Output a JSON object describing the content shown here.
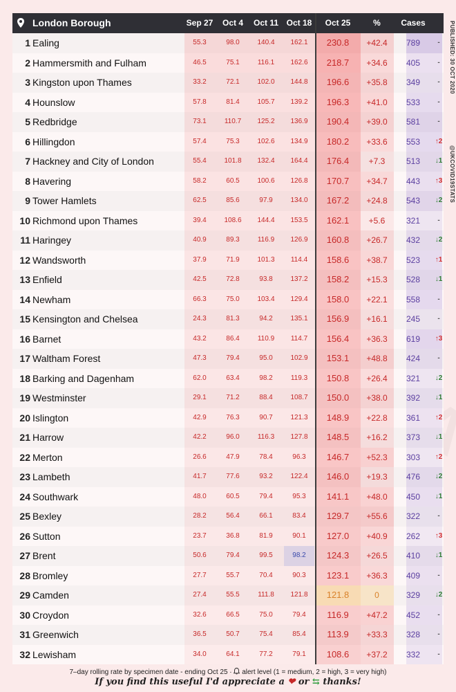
{
  "chart_data": {
    "type": "table",
    "title": "London Borough",
    "columns": [
      "London Borough",
      "Sep 27",
      "Oct 4",
      "Oct 11",
      "Oct 18",
      "Oct 25",
      "%",
      "Cases"
    ],
    "published": "PUBLISHED: 30 OCT 2020",
    "handle": "@UKCOVID19STATS",
    "watermark": "@UKCOVID19STATS",
    "rows": [
      {
        "rank": "1",
        "name": "Ealing",
        "sep27": "55.3",
        "oct4": "98.0",
        "oct11": "140.4",
        "oct18": "162.1",
        "oct25": "230.8",
        "pct": "+42.4",
        "cases": "789",
        "alert": "-"
      },
      {
        "rank": "2",
        "name": "Hammersmith and Fulham",
        "sep27": "46.5",
        "oct4": "75.1",
        "oct11": "116.1",
        "oct18": "162.6",
        "oct25": "218.7",
        "pct": "+34.6",
        "cases": "405",
        "alert": "-"
      },
      {
        "rank": "3",
        "name": "Kingston upon Thames",
        "sep27": "33.2",
        "oct4": "72.1",
        "oct11": "102.0",
        "oct18": "144.8",
        "oct25": "196.6",
        "pct": "+35.8",
        "cases": "349",
        "alert": "-"
      },
      {
        "rank": "4",
        "name": "Hounslow",
        "sep27": "57.8",
        "oct4": "81.4",
        "oct11": "105.7",
        "oct18": "139.2",
        "oct25": "196.3",
        "pct": "+41.0",
        "cases": "533",
        "alert": "-"
      },
      {
        "rank": "5",
        "name": "Redbridge",
        "sep27": "73.1",
        "oct4": "110.7",
        "oct11": "125.2",
        "oct18": "136.9",
        "oct25": "190.4",
        "pct": "+39.0",
        "cases": "581",
        "alert": "-"
      },
      {
        "rank": "6",
        "name": "Hillingdon",
        "sep27": "57.4",
        "oct4": "75.3",
        "oct11": "102.6",
        "oct18": "134.9",
        "oct25": "180.2",
        "pct": "+33.6",
        "cases": "553",
        "alert": "↑2"
      },
      {
        "rank": "7",
        "name": "Hackney and City of London",
        "sep27": "55.4",
        "oct4": "101.8",
        "oct11": "132.4",
        "oct18": "164.4",
        "oct25": "176.4",
        "pct": "+7.3",
        "cases": "513",
        "alert": "↓1"
      },
      {
        "rank": "8",
        "name": "Havering",
        "sep27": "58.2",
        "oct4": "60.5",
        "oct11": "100.6",
        "oct18": "126.8",
        "oct25": "170.7",
        "pct": "+34.7",
        "cases": "443",
        "alert": "↑3"
      },
      {
        "rank": "9",
        "name": "Tower Hamlets",
        "sep27": "62.5",
        "oct4": "85.6",
        "oct11": "97.9",
        "oct18": "134.0",
        "oct25": "167.2",
        "pct": "+24.8",
        "cases": "543",
        "alert": "↓2"
      },
      {
        "rank": "10",
        "name": "Richmond upon Thames",
        "sep27": "39.4",
        "oct4": "108.6",
        "oct11": "144.4",
        "oct18": "153.5",
        "oct25": "162.1",
        "pct": "+5.6",
        "cases": "321",
        "alert": "-"
      },
      {
        "rank": "11",
        "name": "Haringey",
        "sep27": "40.9",
        "oct4": "89.3",
        "oct11": "116.9",
        "oct18": "126.9",
        "oct25": "160.8",
        "pct": "+26.7",
        "cases": "432",
        "alert": "↓2"
      },
      {
        "rank": "12",
        "name": "Wandsworth",
        "sep27": "37.9",
        "oct4": "71.9",
        "oct11": "101.3",
        "oct18": "114.4",
        "oct25": "158.6",
        "pct": "+38.7",
        "cases": "523",
        "alert": "↑1"
      },
      {
        "rank": "13",
        "name": "Enfield",
        "sep27": "42.5",
        "oct4": "72.8",
        "oct11": "93.8",
        "oct18": "137.2",
        "oct25": "158.2",
        "pct": "+15.3",
        "cases": "528",
        "alert": "↓1"
      },
      {
        "rank": "14",
        "name": "Newham",
        "sep27": "66.3",
        "oct4": "75.0",
        "oct11": "103.4",
        "oct18": "129.4",
        "oct25": "158.0",
        "pct": "+22.1",
        "cases": "558",
        "alert": "-"
      },
      {
        "rank": "15",
        "name": "Kensington and Chelsea",
        "sep27": "24.3",
        "oct4": "81.3",
        "oct11": "94.2",
        "oct18": "135.1",
        "oct25": "156.9",
        "pct": "+16.1",
        "cases": "245",
        "alert": "-"
      },
      {
        "rank": "16",
        "name": "Barnet",
        "sep27": "43.2",
        "oct4": "86.4",
        "oct11": "110.9",
        "oct18": "114.7",
        "oct25": "156.4",
        "pct": "+36.3",
        "cases": "619",
        "alert": "↑3"
      },
      {
        "rank": "17",
        "name": "Waltham Forest",
        "sep27": "47.3",
        "oct4": "79.4",
        "oct11": "95.0",
        "oct18": "102.9",
        "oct25": "153.1",
        "pct": "+48.8",
        "cases": "424",
        "alert": "-"
      },
      {
        "rank": "18",
        "name": "Barking and Dagenham",
        "sep27": "62.0",
        "oct4": "63.4",
        "oct11": "98.2",
        "oct18": "119.3",
        "oct25": "150.8",
        "pct": "+26.4",
        "cases": "321",
        "alert": "↓2"
      },
      {
        "rank": "19",
        "name": "Westminster",
        "sep27": "29.1",
        "oct4": "71.2",
        "oct11": "88.4",
        "oct18": "108.7",
        "oct25": "150.0",
        "pct": "+38.0",
        "cases": "392",
        "alert": "↓1"
      },
      {
        "rank": "20",
        "name": "Islington",
        "sep27": "42.9",
        "oct4": "76.3",
        "oct11": "90.7",
        "oct18": "121.3",
        "oct25": "148.9",
        "pct": "+22.8",
        "cases": "361",
        "alert": "↑2"
      },
      {
        "rank": "21",
        "name": "Harrow",
        "sep27": "42.2",
        "oct4": "96.0",
        "oct11": "116.3",
        "oct18": "127.8",
        "oct25": "148.5",
        "pct": "+16.2",
        "cases": "373",
        "alert": "↓1"
      },
      {
        "rank": "22",
        "name": "Merton",
        "sep27": "26.6",
        "oct4": "47.9",
        "oct11": "78.4",
        "oct18": "96.3",
        "oct25": "146.7",
        "pct": "+52.3",
        "cases": "303",
        "alert": "↑2"
      },
      {
        "rank": "23",
        "name": "Lambeth",
        "sep27": "41.7",
        "oct4": "77.6",
        "oct11": "93.2",
        "oct18": "122.4",
        "oct25": "146.0",
        "pct": "+19.3",
        "cases": "476",
        "alert": "↓2"
      },
      {
        "rank": "24",
        "name": "Southwark",
        "sep27": "48.0",
        "oct4": "60.5",
        "oct11": "79.4",
        "oct18": "95.3",
        "oct25": "141.1",
        "pct": "+48.0",
        "cases": "450",
        "alert": "↓1"
      },
      {
        "rank": "25",
        "name": "Bexley",
        "sep27": "28.2",
        "oct4": "56.4",
        "oct11": "66.1",
        "oct18": "83.4",
        "oct25": "129.7",
        "pct": "+55.6",
        "cases": "322",
        "alert": "-"
      },
      {
        "rank": "26",
        "name": "Sutton",
        "sep27": "23.7",
        "oct4": "36.8",
        "oct11": "81.9",
        "oct18": "90.1",
        "oct25": "127.0",
        "pct": "+40.9",
        "cases": "262",
        "alert": "↑3"
      },
      {
        "rank": "27",
        "name": "Brent",
        "sep27": "50.6",
        "oct4": "79.4",
        "oct11": "99.5",
        "oct18": "98.2",
        "oct25": "124.3",
        "pct": "+26.5",
        "cases": "410",
        "alert": "↓1"
      },
      {
        "rank": "28",
        "name": "Bromley",
        "sep27": "27.7",
        "oct4": "55.7",
        "oct11": "70.4",
        "oct18": "90.3",
        "oct25": "123.1",
        "pct": "+36.3",
        "cases": "409",
        "alert": "-"
      },
      {
        "rank": "29",
        "name": "Camden",
        "sep27": "27.4",
        "oct4": "55.5",
        "oct11": "111.8",
        "oct18": "121.8",
        "oct25": "121.8",
        "pct": "0",
        "cases": "329",
        "alert": "↓2"
      },
      {
        "rank": "30",
        "name": "Croydon",
        "sep27": "32.6",
        "oct4": "66.5",
        "oct11": "75.0",
        "oct18": "79.4",
        "oct25": "116.9",
        "pct": "+47.2",
        "cases": "452",
        "alert": "-"
      },
      {
        "rank": "31",
        "name": "Greenwich",
        "sep27": "36.5",
        "oct4": "50.7",
        "oct11": "75.4",
        "oct18": "85.4",
        "oct25": "113.9",
        "pct": "+33.3",
        "cases": "328",
        "alert": "-"
      },
      {
        "rank": "32",
        "name": "Lewisham",
        "sep27": "34.0",
        "oct4": "64.1",
        "oct11": "77.2",
        "oct18": "79.1",
        "oct25": "108.6",
        "pct": "+37.2",
        "cases": "332",
        "alert": "-"
      }
    ],
    "footnote_before_icon": "7–day rolling rate by specimen date - ending Oct 25 · ",
    "footnote_icon": "bell-icon",
    "footnote_after_icon": " alert level (1 = medium, 2 = high, 3 = very high)",
    "thanks_before": "If you find this useful I'd appreciate a ",
    "thanks_middle": " or ",
    "thanks_after": " thanks!",
    "colors": {
      "header_bg": "#2f2f35",
      "page_bg": "#fbeaea",
      "value_red": "#c62828",
      "cases_purple": "#5b3fa0",
      "alert_up": "#d32f2f",
      "alert_down": "#2e7d32"
    }
  }
}
